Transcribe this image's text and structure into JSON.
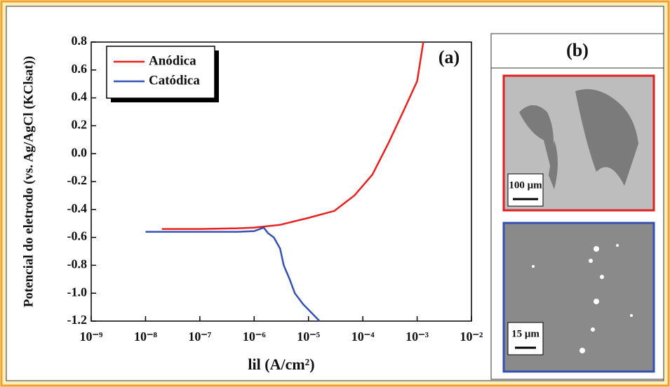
{
  "chart_data": {
    "type": "line",
    "log_x": true,
    "ylabel": "Potencial do eletrodo (vs. Ag/AgCl (KClsat))",
    "xlabel": "lil (A/cm²)",
    "panel_label": "(a)",
    "legend": "upper left",
    "grid": false,
    "xlim": [
      1e-09,
      0.01
    ],
    "xticks": [
      {
        "value": 1e-09,
        "label": "10⁻⁹"
      },
      {
        "value": 1e-08,
        "label": "10⁻⁸"
      },
      {
        "value": 1e-07,
        "label": "10⁻⁷"
      },
      {
        "value": 1e-06,
        "label": "10⁻⁶"
      },
      {
        "value": 1e-05,
        "label": "10⁻⁵"
      },
      {
        "value": 0.0001,
        "label": "10⁻⁴"
      },
      {
        "value": 0.001,
        "label": "10⁻³"
      },
      {
        "value": 0.01,
        "label": "10⁻²"
      }
    ],
    "ylim": [
      -1.2,
      0.8
    ],
    "yticks": [
      -1.2,
      {
        "value": -1,
        "label": "-1.0"
      },
      -0.8,
      -0.6,
      -0.4,
      -0.2,
      {
        "value": 0,
        "label": "0.0"
      },
      0.2,
      0.4,
      0.6,
      0.8
    ],
    "series": [
      {
        "name": "Anódica",
        "color": "#e8211f",
        "x": [
          2e-08,
          1e-07,
          5e-07,
          1e-06,
          3e-06,
          1e-05,
          3e-05,
          7e-05,
          0.00015,
          0.0003,
          0.0006,
          0.001,
          0.0013
        ],
        "values": [
          -0.54,
          -0.54,
          -0.535,
          -0.53,
          -0.51,
          -0.46,
          -0.41,
          -0.3,
          -0.15,
          0.08,
          0.33,
          0.52,
          0.8
        ]
      },
      {
        "name": "Catódica",
        "color": "#3451b2",
        "x": [
          1e-08,
          1e-07,
          5e-07,
          1e-06,
          1.5e-06,
          1.8e-06,
          2.3e-06,
          3e-06,
          3.5e-06,
          4.5e-06,
          5.6e-06,
          8e-06,
          1.2e-05,
          1.6e-05
        ],
        "values": [
          -0.56,
          -0.56,
          -0.56,
          -0.555,
          -0.53,
          -0.57,
          -0.6,
          -0.68,
          -0.8,
          -0.9,
          -1.0,
          -1.08,
          -1.15,
          -1.2
        ]
      }
    ]
  },
  "panel_b": {
    "label": "(b)",
    "images": [
      {
        "scale_label": "100 μm"
      },
      {
        "scale_label": "15 μm"
      }
    ]
  }
}
